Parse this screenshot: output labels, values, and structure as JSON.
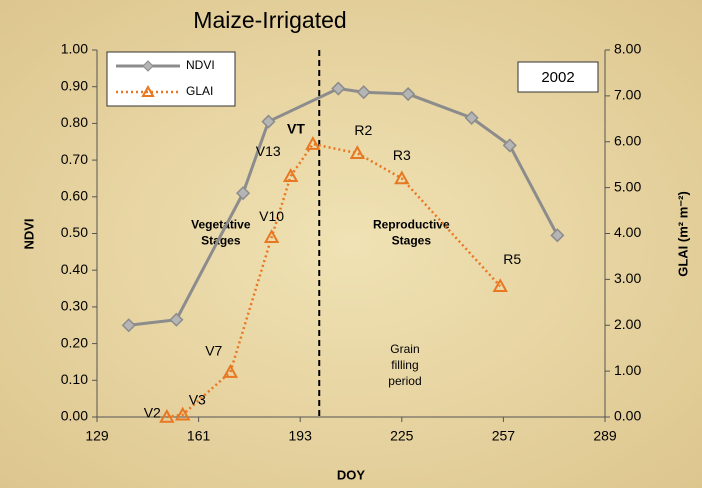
{
  "chart_data": {
    "type": "line",
    "title": "Maize-Irrigated",
    "xlabel": "DOY",
    "ylabel": "NDVI",
    "y2label": "GLAI (m² m⁻²)",
    "xlim": [
      129,
      289
    ],
    "xticks": [
      129,
      161,
      193,
      225,
      257,
      289
    ],
    "ylim": [
      0,
      1
    ],
    "yticks": [
      {
        "value": 0,
        "label": "0.00"
      },
      {
        "value": 0.1,
        "label": "0.10"
      },
      {
        "value": 0.2,
        "label": "0.20"
      },
      {
        "value": 0.3,
        "label": "0.30"
      },
      {
        "value": 0.4,
        "label": "0.40"
      },
      {
        "value": 0.5,
        "label": "0.50"
      },
      {
        "value": 0.6,
        "label": "0.60"
      },
      {
        "value": 0.7,
        "label": "0.70"
      },
      {
        "value": 0.8,
        "label": "0.80"
      },
      {
        "value": 0.9,
        "label": "0.90"
      },
      {
        "value": 1,
        "label": "1.00"
      }
    ],
    "y2lim": [
      0,
      8
    ],
    "y2ticks": [
      {
        "value": 0,
        "label": "0.00"
      },
      {
        "value": 1,
        "label": "1.00"
      },
      {
        "value": 2,
        "label": "2.00"
      },
      {
        "value": 3,
        "label": "3.00"
      },
      {
        "value": 4,
        "label": "4.00"
      },
      {
        "value": 5,
        "label": "5.00"
      },
      {
        "value": 6,
        "label": "6.00"
      },
      {
        "value": 7,
        "label": "7.00"
      },
      {
        "value": 8,
        "label": "8.00"
      }
    ],
    "legend": "upper left",
    "year_label": "2002",
    "reference_line": {
      "x": 199
    },
    "annotations": [
      {
        "x": 168,
        "y": 0.5,
        "lines": [
          "Vegetative",
          "Stages"
        ]
      },
      {
        "x": 228,
        "y": 0.5,
        "lines": [
          "Reproductive",
          "Stages"
        ]
      },
      {
        "x": 226,
        "y": 0.14,
        "lines": [
          "Grain",
          "filling",
          "period"
        ]
      }
    ],
    "series": [
      {
        "name": "NDVI",
        "color": "#8c8c8c",
        "x": [
          139,
          154,
          175,
          183,
          205,
          213,
          227,
          247,
          259,
          274
        ],
        "values": [
          0.25,
          0.265,
          0.61,
          0.805,
          0.895,
          0.885,
          0.88,
          0.815,
          0.74,
          0.495
        ]
      },
      {
        "name": "GLAI",
        "color": "#e87722",
        "axis": "y2",
        "x": [
          151,
          156,
          171,
          184,
          190,
          197,
          211,
          225,
          256
        ],
        "values": [
          0,
          0.05,
          0.98,
          3.92,
          5.25,
          5.95,
          5.75,
          5.2,
          2.85
        ],
        "point_labels": [
          "V2",
          "V3",
          "V7",
          "V10",
          "V13",
          "VT",
          "R2",
          "R3",
          "R5"
        ]
      }
    ]
  }
}
